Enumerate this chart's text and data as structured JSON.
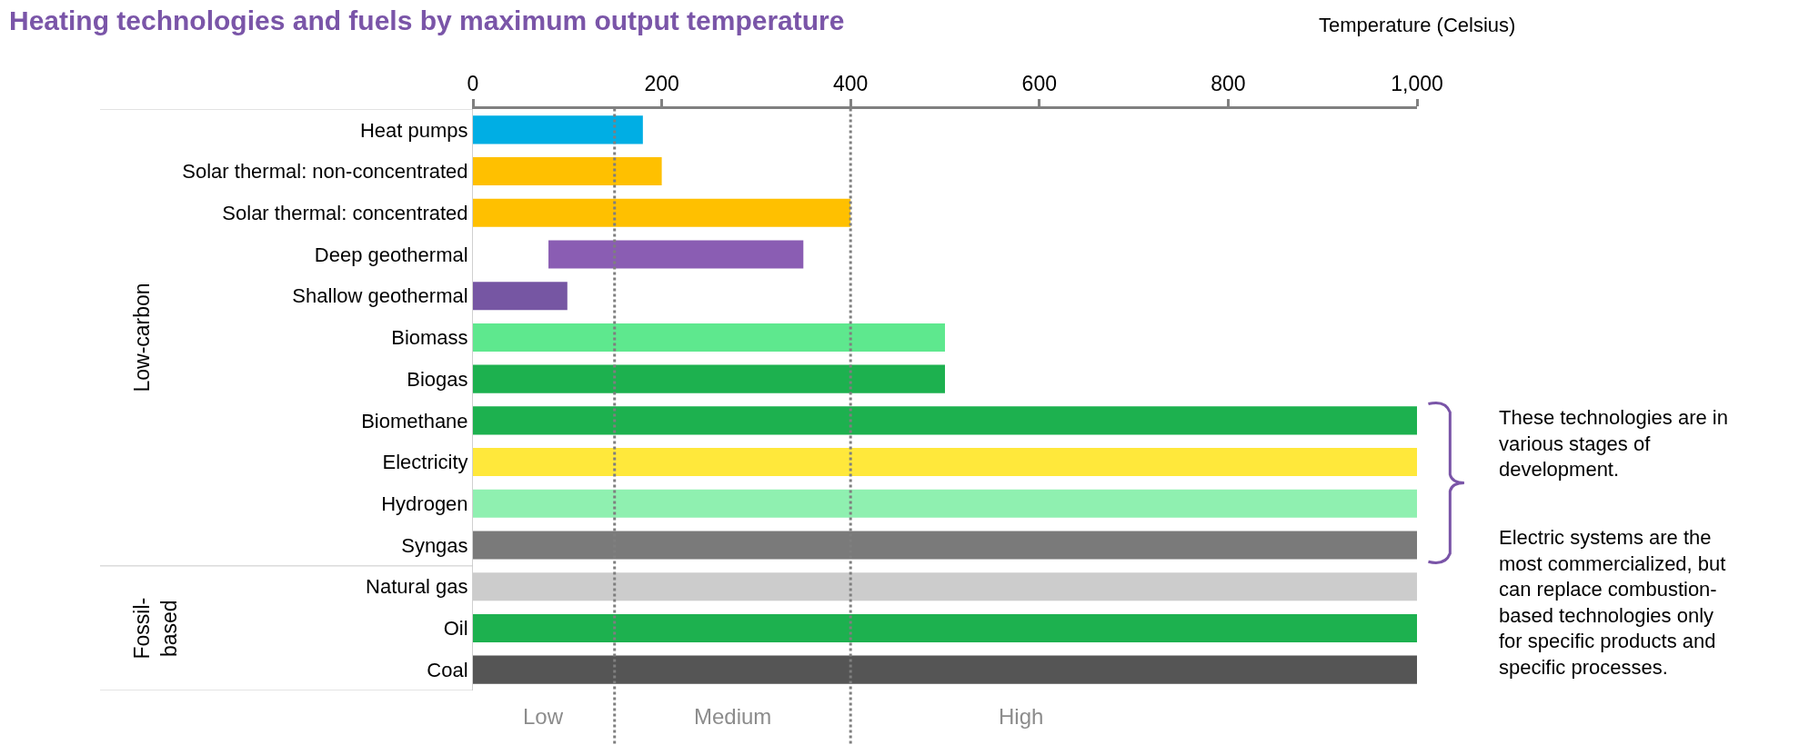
{
  "chart_data": {
    "type": "bar",
    "orientation": "horizontal",
    "title": "Heating technologies and fuels by maximum output temperature",
    "xlabel": "Temperature (Celsius)",
    "categories": [
      "Heat pumps",
      "Solar thermal: non-concentrated",
      "Solar thermal: concentrated",
      "Deep geothermal",
      "Shallow geothermal",
      "Biomass",
      "Biogas",
      "Biomethane",
      "Electricity",
      "Hydrogen",
      "Syngas",
      "Natural gas",
      "Oil",
      "Coal"
    ],
    "values": [
      180,
      200,
      400,
      270,
      100,
      500,
      500,
      1000,
      1000,
      1000,
      1000,
      1000,
      1000,
      1000
    ],
    "base": [
      0,
      0,
      0,
      80,
      0,
      0,
      0,
      0,
      0,
      0,
      0,
      0,
      0,
      0
    ],
    "colors": [
      "#00aee4",
      "#ffc000",
      "#ffc000",
      "#8a5db3",
      "#7656a3",
      "#5ee88e",
      "#1db14f",
      "#1db14f",
      "#ffe83b",
      "#8ff0b0",
      "#7a7a7a",
      "#cccccc",
      "#1db14f",
      "#555555"
    ],
    "xlim": [
      0,
      1000
    ],
    "xticks": [
      0,
      200,
      400,
      600,
      800,
      {
        "value": 1000,
        "label": "1,000"
      }
    ],
    "legend": false,
    "ref_lines": [
      {
        "axis": "x",
        "value": 150,
        "color": "#7f7f7f",
        "line_style": "dotted"
      },
      {
        "axis": "x",
        "value": 400,
        "color": "#7f7f7f",
        "line_style": "dotted"
      }
    ],
    "annotations": [
      "Low",
      "Medium",
      "High",
      "Low-carbon",
      "Fossil-\nbased",
      "These technologies are in\nvarious stages of\ndevelopment.",
      "Electric systems are the\nmost commercialized, but\ncan replace combustion-\nbased technologies only\nfor specific products and\nspecific processes."
    ]
  }
}
